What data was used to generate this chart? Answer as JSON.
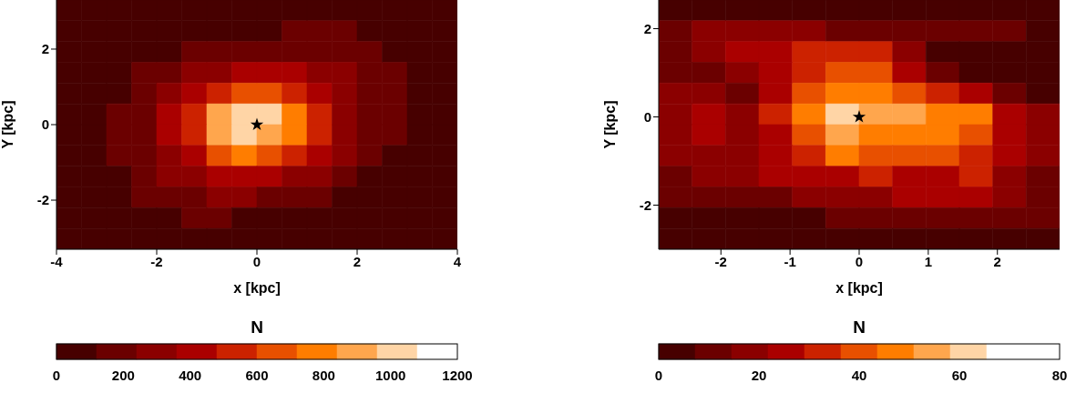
{
  "chart_data": [
    {
      "type": "heatmap",
      "xlabel": "x [kpc]",
      "ylabel": "Y [kpc]",
      "clabel": "N",
      "xlim": [
        -4,
        4
      ],
      "xticks": [
        -4,
        -2,
        0,
        2,
        4
      ],
      "ylim": [
        -3.3,
        3.3
      ],
      "yticks": [
        -2,
        0,
        2
      ],
      "clim": [
        0,
        1200
      ],
      "cticks": [
        0,
        200,
        400,
        600,
        800,
        1000,
        1200
      ],
      "colors": [
        "#470000",
        "#6b0000",
        "#8b0000",
        "#aa0000",
        "#cc2200",
        "#e85000",
        "#ff7d00",
        "#ffa64d",
        "#ffd5a6",
        "#ffffff"
      ],
      "cells": [
        [
          60,
          60,
          60,
          60,
          60,
          60,
          60,
          60,
          60,
          60,
          60,
          60,
          60,
          60,
          60,
          60
        ],
        [
          60,
          60,
          60,
          60,
          60,
          60,
          60,
          60,
          60,
          180,
          180,
          180,
          60,
          60,
          60,
          60
        ],
        [
          60,
          60,
          60,
          60,
          60,
          180,
          180,
          180,
          180,
          180,
          180,
          180,
          180,
          60,
          60,
          60
        ],
        [
          60,
          60,
          60,
          180,
          180,
          300,
          300,
          420,
          420,
          420,
          300,
          300,
          180,
          180,
          60,
          60
        ],
        [
          60,
          60,
          60,
          180,
          300,
          420,
          540,
          660,
          660,
          540,
          420,
          300,
          180,
          180,
          60,
          60
        ],
        [
          60,
          60,
          180,
          180,
          420,
          540,
          900,
          1020,
          1020,
          780,
          540,
          300,
          180,
          180,
          60,
          60
        ],
        [
          60,
          60,
          180,
          180,
          420,
          540,
          900,
          1020,
          900,
          780,
          540,
          300,
          180,
          180,
          60,
          60
        ],
        [
          60,
          60,
          180,
          180,
          300,
          420,
          660,
          780,
          660,
          540,
          420,
          300,
          180,
          60,
          60,
          60
        ],
        [
          60,
          60,
          60,
          180,
          300,
          300,
          420,
          420,
          420,
          300,
          300,
          180,
          60,
          60,
          60,
          60
        ],
        [
          60,
          60,
          60,
          180,
          180,
          180,
          300,
          300,
          180,
          180,
          180,
          60,
          60,
          60,
          60,
          60
        ],
        [
          60,
          60,
          60,
          60,
          60,
          180,
          180,
          60,
          60,
          60,
          60,
          60,
          60,
          60,
          60,
          60
        ],
        [
          60,
          60,
          60,
          60,
          60,
          60,
          60,
          60,
          60,
          60,
          60,
          60,
          60,
          60,
          60,
          60
        ]
      ],
      "series": [
        {
          "type": "scatter",
          "x": [
            0
          ],
          "values": [
            0
          ],
          "color": "#000000"
        }
      ],
      "marker": "star"
    },
    {
      "type": "heatmap",
      "xlabel": "x [kpc]",
      "ylabel": "Y [kpc]",
      "clabel": "N",
      "xlim": [
        -2.9,
        2.9
      ],
      "xticks": [
        -2,
        -1,
        0,
        1,
        2
      ],
      "ylim": [
        -3,
        2.65
      ],
      "yticks": [
        -2,
        0,
        2
      ],
      "clim": [
        0,
        80
      ],
      "cticks": [
        0,
        20,
        40,
        60,
        80
      ],
      "colors": [
        "#470000",
        "#6b0000",
        "#8b0000",
        "#aa0000",
        "#cc2200",
        "#e85000",
        "#ff7d00",
        "#ffa64d",
        "#ffd5a6",
        "#ffffff",
        "#ffffff"
      ],
      "cells": [
        [
          3.6,
          3.6,
          3.6,
          3.6,
          3.6,
          3.6,
          3.6,
          3.6,
          3.6,
          3.6,
          3.6,
          3.6
        ],
        [
          10.9,
          18.2,
          18.2,
          18.2,
          18.2,
          10.9,
          10.9,
          10.9,
          10.9,
          10.9,
          10.9,
          3.6
        ],
        [
          10.9,
          18.2,
          25.5,
          25.5,
          32.7,
          32.7,
          32.7,
          18.2,
          3.6,
          3.6,
          3.6,
          3.6
        ],
        [
          10.9,
          10.9,
          18.2,
          25.5,
          32.7,
          40,
          40,
          25.5,
          10.9,
          3.6,
          3.6,
          3.6
        ],
        [
          18.2,
          18.2,
          10.9,
          25.5,
          40,
          47.3,
          47.3,
          40,
          32.7,
          25.5,
          10.9,
          3.6
        ],
        [
          18.2,
          25.5,
          18.2,
          32.7,
          47.3,
          61.8,
          54.5,
          54.5,
          47.3,
          47.3,
          25.5,
          18.2
        ],
        [
          18.2,
          25.5,
          18.2,
          25.5,
          40,
          54.5,
          47.3,
          47.3,
          47.3,
          40,
          25.5,
          18.2
        ],
        [
          18.2,
          18.2,
          18.2,
          25.5,
          32.7,
          47.3,
          40,
          40,
          40,
          32.7,
          25.5,
          18.2
        ],
        [
          10.9,
          18.2,
          18.2,
          25.5,
          25.5,
          25.5,
          32.7,
          25.5,
          25.5,
          32.7,
          18.2,
          10.9
        ],
        [
          10.9,
          10.9,
          10.9,
          10.9,
          18.2,
          18.2,
          18.2,
          25.5,
          25.5,
          25.5,
          18.2,
          10.9
        ],
        [
          3.6,
          3.6,
          3.6,
          3.6,
          3.6,
          10.9,
          10.9,
          10.9,
          10.9,
          10.9,
          10.9,
          10.9
        ],
        [
          3.6,
          3.6,
          3.6,
          3.6,
          3.6,
          3.6,
          3.6,
          3.6,
          3.6,
          3.6,
          3.6,
          3.6
        ]
      ],
      "series": [
        {
          "type": "scatter",
          "x": [
            0
          ],
          "values": [
            0
          ],
          "color": "#000000"
        }
      ],
      "marker": "star"
    }
  ]
}
